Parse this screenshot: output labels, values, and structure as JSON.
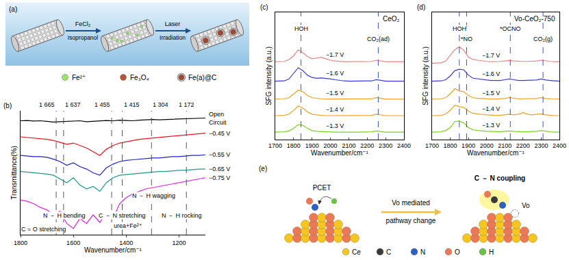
{
  "chart_data": [
    {
      "panel": "(b)",
      "type": "line",
      "x_label": "Wavenumber/cm⁻¹",
      "y_label": "Transmittance(%)",
      "x": [
        1800,
        1775,
        1750,
        1725,
        1700,
        1675,
        1650,
        1625,
        1600,
        1575,
        1550,
        1525,
        1500,
        1475,
        1450,
        1425,
        1400,
        1375,
        1350,
        1325,
        1300,
        1275,
        1250,
        1225,
        1200,
        1175,
        1150,
        1125,
        1100
      ],
      "xlim": [
        1800,
        1100
      ],
      "xticks": [
        1800,
        1600,
        1400,
        1200
      ],
      "ylim": [
        0,
        10
      ],
      "tick_labels": "x",
      "grid": false,
      "series": [
        {
          "name": "Open Circuit",
          "color": "#000000",
          "values": [
            9.2,
            9.22,
            9.18,
            9.2,
            9.15,
            9.1,
            9.12,
            9.15,
            9.18,
            9.2,
            9.12,
            9.15,
            9.2,
            9.22,
            9.2,
            9.25,
            9.22,
            9.2,
            9.25,
            9.28,
            9.3,
            9.28,
            9.3,
            9.32,
            9.3,
            9.35,
            9.38,
            9.4,
            9.42
          ]
        },
        {
          "name": "−0.45 V",
          "color": "#e8141c",
          "values": [
            7.9,
            7.85,
            7.8,
            7.75,
            7.7,
            7.6,
            7.45,
            7.3,
            7.4,
            7.2,
            7.0,
            6.7,
            6.4,
            6.9,
            7.2,
            7.4,
            7.5,
            7.6,
            7.7,
            7.75,
            7.8,
            7.85,
            7.9,
            7.95,
            8.0,
            8.05,
            8.1,
            8.15,
            8.2
          ]
        },
        {
          "name": "−0.55 V",
          "color": "#1f1fd0",
          "values": [
            6.4,
            6.35,
            6.3,
            6.3,
            6.25,
            6.1,
            5.9,
            5.6,
            5.8,
            5.5,
            5.3,
            5.0,
            4.8,
            5.4,
            5.7,
            5.9,
            6.0,
            6.05,
            6.1,
            6.15,
            6.2,
            6.2,
            6.25,
            6.3,
            6.3,
            6.35,
            6.4,
            6.4,
            6.45
          ]
        },
        {
          "name": "−0.65 V",
          "color": "#1a9a8a",
          "values": [
            5.1,
            5.05,
            5.0,
            4.95,
            4.9,
            4.8,
            4.5,
            4.2,
            4.6,
            4.0,
            3.7,
            3.9,
            3.5,
            4.2,
            4.6,
            4.8,
            4.85,
            4.9,
            4.95,
            5.0,
            5.05,
            5.1,
            5.1,
            5.15,
            5.2,
            5.2,
            5.25,
            5.3,
            5.3
          ]
        },
        {
          "name": "−0.75 V",
          "color": "#e020e0",
          "values": [
            2.8,
            2.7,
            2.5,
            2.2,
            2.0,
            1.6,
            1.9,
            0.9,
            0.5,
            1.3,
            0.9,
            1.6,
            1.0,
            1.8,
            1.3,
            2.5,
            3.0,
            3.3,
            3.5,
            3.7,
            3.8,
            3.9,
            4.0,
            4.1,
            4.2,
            4.3,
            4.4,
            4.5,
            4.6
          ]
        }
      ],
      "reference_lines": [
        {
          "value": 1665,
          "label": "1 665"
        },
        {
          "value": 1637,
          "label": "1 637"
        },
        {
          "value": 1455,
          "label": "1 455"
        },
        {
          "value": 1415,
          "label": "1 415"
        },
        {
          "value": 1304,
          "label": "1 304"
        },
        {
          "value": 1172,
          "label": "1 172"
        }
      ],
      "annotations": [
        "C = O stretching",
        "N － H bending",
        "C － N stretching",
        "urea+Fe²⁺",
        "N － H wagging",
        "N － H rocking"
      ]
    },
    {
      "panel": "(c)",
      "type": "line",
      "title": "CeO₂",
      "x_label": "Wavenumber/cm⁻¹",
      "y_label": "SFG intensity (a.u.)",
      "x": [
        1700,
        1725,
        1750,
        1775,
        1800,
        1825,
        1850,
        1875,
        1900,
        1925,
        1950,
        1975,
        2000,
        2025,
        2050,
        2075,
        2100,
        2125,
        2150,
        2175,
        2200,
        2225,
        2250,
        2275,
        2300,
        2325,
        2350,
        2375,
        2400
      ],
      "xlim": [
        1700,
        2400
      ],
      "xticks": [
        1700,
        1800,
        1900,
        2000,
        2100,
        2200,
        2300,
        2400
      ],
      "ylim": [
        0.5,
        9
      ],
      "tick_labels": "x",
      "grid": false,
      "series": [
        {
          "name": "−1.7 V",
          "color": "#f08080",
          "values": [
            5.7,
            5.7,
            5.72,
            5.85,
            6.1,
            6.5,
            6.3,
            6.05,
            5.9,
            5.95,
            6.0,
            5.9,
            5.8,
            5.75,
            5.72,
            5.7,
            5.7,
            5.72,
            5.72,
            5.7,
            5.7,
            5.72,
            5.8,
            5.75,
            5.7,
            5.7,
            5.7,
            5.7,
            5.7
          ]
        },
        {
          "name": "−1.6 V",
          "color": "#3a3ae0",
          "values": [
            4.4,
            4.4,
            4.42,
            4.55,
            4.9,
            5.3,
            5.1,
            4.8,
            4.65,
            4.6,
            4.62,
            4.6,
            4.55,
            4.5,
            4.45,
            4.42,
            4.4,
            4.4,
            4.4,
            4.4,
            4.4,
            4.42,
            4.5,
            4.44,
            4.4,
            4.4,
            4.4,
            4.4,
            4.4
          ]
        },
        {
          "name": "−1.5 V",
          "color": "#f0a020",
          "values": [
            3.2,
            3.2,
            3.22,
            3.3,
            3.55,
            3.8,
            3.7,
            3.45,
            3.3,
            3.25,
            3.22,
            3.2,
            3.2,
            3.2,
            3.2,
            3.2,
            3.2,
            3.2,
            3.2,
            3.2,
            3.2,
            3.22,
            3.3,
            3.24,
            3.2,
            3.2,
            3.2,
            3.2,
            3.2
          ]
        },
        {
          "name": "−1.4 V",
          "color": "#f0a020",
          "values": [
            2.1,
            2.1,
            2.12,
            2.2,
            2.45,
            2.75,
            2.6,
            2.35,
            2.2,
            2.15,
            2.12,
            2.1,
            2.1,
            2.1,
            2.1,
            2.1,
            2.1,
            2.1,
            2.1,
            2.1,
            2.1,
            2.12,
            2.2,
            2.14,
            2.1,
            2.1,
            2.1,
            2.1,
            2.1
          ]
        },
        {
          "name": "−1.3 V",
          "color": "#7ad020",
          "values": [
            1.0,
            1.0,
            1.02,
            1.08,
            1.25,
            1.5,
            1.45,
            1.25,
            1.1,
            1.05,
            1.03,
            1.02,
            1.02,
            1.0,
            1.0,
            1.01,
            1.0,
            1.0,
            1.0,
            1.0,
            1.01,
            1.02,
            1.08,
            1.04,
            1.0,
            1.0,
            1.0,
            1.0,
            1.0
          ]
        }
      ],
      "reference_lines": [
        {
          "value": 1840,
          "label": "HOH"
        },
        {
          "value": 2260,
          "label": "CO₂(ad)"
        }
      ]
    },
    {
      "panel": "(d)",
      "type": "line",
      "title": "Vo-CeO₂-750",
      "x_label": "Wavenumber/cm⁻¹",
      "y_label": "SFG intensity (a.u.)",
      "x": [
        1700,
        1725,
        1750,
        1775,
        1800,
        1825,
        1850,
        1875,
        1900,
        1925,
        1950,
        1975,
        2000,
        2025,
        2050,
        2075,
        2100,
        2125,
        2150,
        2175,
        2200,
        2225,
        2250,
        2275,
        2300,
        2325,
        2350,
        2375,
        2400
      ],
      "xlim": [
        1700,
        2400
      ],
      "xticks": [
        1700,
        1800,
        1900,
        2000,
        2100,
        2200,
        2300,
        2400
      ],
      "ylim": [
        0.5,
        9
      ],
      "tick_labels": "x",
      "grid": false,
      "series": [
        {
          "name": "−1.7 V",
          "color": "#f08080",
          "values": [
            5.6,
            5.6,
            5.62,
            5.75,
            6.1,
            6.5,
            6.7,
            6.45,
            6.0,
            5.85,
            5.8,
            5.75,
            5.72,
            5.7,
            5.7,
            5.72,
            5.75,
            5.78,
            5.75,
            5.72,
            5.72,
            5.72,
            5.72,
            5.75,
            5.8,
            5.75,
            5.72,
            5.7,
            5.7
          ]
        },
        {
          "name": "−1.6 V",
          "color": "#3a3ae0",
          "values": [
            4.4,
            4.4,
            4.42,
            4.5,
            4.75,
            5.1,
            5.2,
            5.15,
            4.8,
            4.6,
            4.55,
            4.5,
            4.48,
            4.45,
            4.45,
            4.45,
            4.5,
            4.55,
            4.5,
            4.45,
            4.45,
            4.45,
            4.45,
            4.48,
            4.55,
            4.48,
            4.45,
            4.42,
            4.4
          ]
        },
        {
          "name": "−1.5 V",
          "color": "#f0a020",
          "values": [
            3.2,
            3.2,
            3.22,
            3.3,
            3.55,
            3.9,
            3.75,
            3.7,
            3.45,
            3.3,
            3.25,
            3.25,
            3.22,
            3.2,
            3.2,
            3.22,
            3.25,
            3.3,
            3.25,
            3.22,
            3.22,
            3.22,
            3.22,
            3.25,
            3.3,
            3.24,
            3.22,
            3.2,
            3.2
          ]
        },
        {
          "name": "−1.4 V",
          "color": "#f0a020",
          "values": [
            2.1,
            2.1,
            2.12,
            2.2,
            2.45,
            2.8,
            2.7,
            2.65,
            2.4,
            2.25,
            2.2,
            2.18,
            2.15,
            2.12,
            2.12,
            2.12,
            2.15,
            2.2,
            2.15,
            2.2,
            2.3,
            2.2,
            2.15,
            2.18,
            2.22,
            2.15,
            2.12,
            2.1,
            2.1
          ]
        },
        {
          "name": "−1.3 V",
          "color": "#7ad020",
          "values": [
            1.0,
            1.0,
            1.02,
            1.1,
            1.3,
            1.7,
            1.75,
            1.6,
            1.3,
            1.15,
            1.1,
            1.08,
            1.05,
            1.03,
            1.02,
            1.02,
            1.05,
            1.08,
            1.04,
            1.02,
            1.02,
            1.02,
            1.03,
            1.05,
            1.1,
            1.05,
            1.02,
            1.0,
            1.0
          ]
        }
      ],
      "reference_lines": [
        {
          "value": 1850,
          "label": "HOH"
        },
        {
          "value": 1890,
          "label": "*NO"
        },
        {
          "value": 2130,
          "label": "*OCNO"
        },
        {
          "value": 2310,
          "label": "CO₂(g)"
        }
      ]
    }
  ],
  "diagrams": {
    "a": {
      "panel": "(a)",
      "arrows": [
        {
          "above": "FeCl₂",
          "below": "Isopropanol"
        },
        {
          "above": "Laser",
          "below": "Irradiation"
        }
      ],
      "legend": [
        {
          "label": "Fe²⁺",
          "color": "#9be36a"
        },
        {
          "label": "Fe₃O₄",
          "color": "#b5553a"
        },
        {
          "label": "Fe(a)@C",
          "color": "#9a4a35"
        }
      ]
    },
    "e": {
      "panel": "(e)",
      "left_label": "PCET",
      "arrow": {
        "above": "Vo mediated",
        "below": "pathway change"
      },
      "right_label": "C － N coupling",
      "vacancy_label": "Vo",
      "legend": [
        {
          "label": "Ce",
          "color": "#f3c623"
        },
        {
          "label": "C",
          "color": "#3a3a3a"
        },
        {
          "label": "N",
          "color": "#3060c0"
        },
        {
          "label": "O",
          "color": "#e9795a"
        },
        {
          "label": "H",
          "color": "#6cc04a"
        }
      ]
    }
  }
}
